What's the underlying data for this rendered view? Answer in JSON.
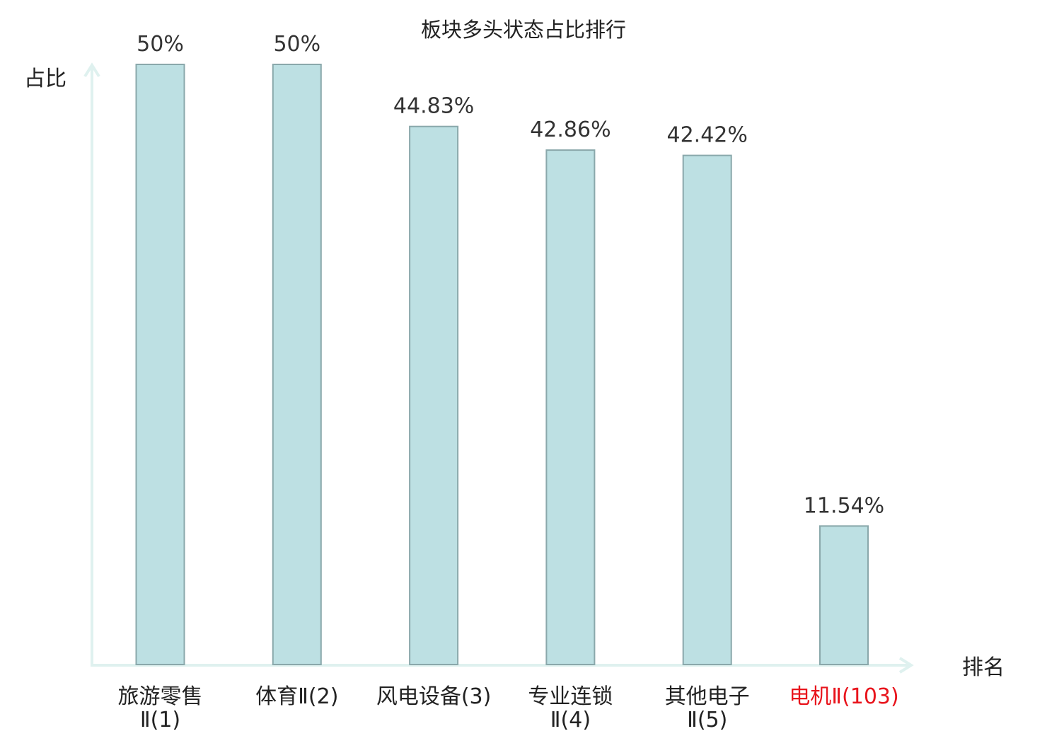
{
  "chart_data": {
    "type": "bar",
    "title": "板块多头状态占比排行",
    "xlabel": "排名",
    "ylabel": "占比",
    "ylim": [
      0,
      50
    ],
    "grid": false,
    "legend": "none",
    "categories": [
      [
        "旅游零售",
        "Ⅱ(1)"
      ],
      [
        "体育Ⅱ(2)"
      ],
      [
        "风电设备(3)"
      ],
      [
        "专业连锁",
        "Ⅱ(4)"
      ],
      [
        "其他电子",
        "Ⅱ(5)"
      ],
      [
        "电机Ⅱ(103)"
      ]
    ],
    "values": [
      50,
      50,
      44.83,
      42.86,
      42.42,
      11.54
    ],
    "value_labels": [
      "50%",
      "50%",
      "44.83%",
      "42.86%",
      "42.42%",
      "11.54%"
    ],
    "highlight_index": 5,
    "colors": {
      "bar_fill": "#bde0e3",
      "bar_stroke": "#8aa8ab",
      "axis": "#dff1ef",
      "text": "#222222",
      "value_text": "#333333",
      "highlight": "#e8141c"
    }
  }
}
